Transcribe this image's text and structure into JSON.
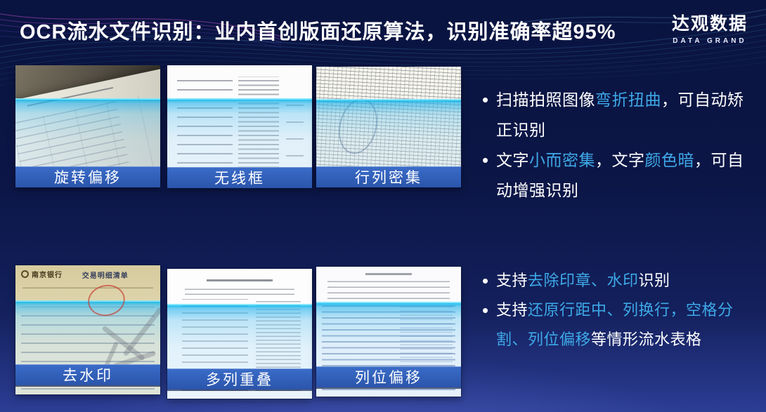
{
  "title": "OCR流水文件识别：业内首创版面还原算法，识别准确率超95%",
  "logo": {
    "cn": "达观数据",
    "en": "DATA GRAND"
  },
  "bullet_char": "•",
  "colors": {
    "accent_cyan": "#3EA9E8",
    "label_bar_blue": "#2E5DB8",
    "background_top": "#0A1440",
    "background_bottom": "#2C3D94",
    "scan_overlay_cyan": "#00B4EB"
  },
  "cards": [
    {
      "label": "旋转偏移",
      "variant": "rotate"
    },
    {
      "label": "无线框",
      "variant": "nolines"
    },
    {
      "label": "行列密集",
      "variant": "dense"
    },
    {
      "label": "去水印",
      "variant": "watermark",
      "bank": "南京银行",
      "doc_title": "交易明细清单"
    },
    {
      "label": "多列重叠",
      "variant": "multicol"
    },
    {
      "label": "列位偏移",
      "variant": "offset"
    }
  ],
  "bullets_top": [
    {
      "segments": [
        {
          "t": "扫描拍照图像",
          "hl": false
        },
        {
          "t": "弯折扭曲",
          "hl": true
        },
        {
          "t": "，可自动矫正识别",
          "hl": false
        }
      ]
    },
    {
      "segments": [
        {
          "t": "文字",
          "hl": false
        },
        {
          "t": "小而密集",
          "hl": true
        },
        {
          "t": "，文字",
          "hl": false
        },
        {
          "t": "颜色暗",
          "hl": true
        },
        {
          "t": "，可自动增强识别",
          "hl": false
        }
      ]
    }
  ],
  "bullets_bottom": [
    {
      "segments": [
        {
          "t": "支持",
          "hl": false
        },
        {
          "t": "去除印章、水印",
          "hl": true
        },
        {
          "t": "识别",
          "hl": false
        }
      ]
    },
    {
      "segments": [
        {
          "t": "支持",
          "hl": false
        },
        {
          "t": "还原行距中、列换行，空格分割、列位偏移",
          "hl": true
        },
        {
          "t": "等情形流水表格",
          "hl": false
        }
      ]
    }
  ]
}
